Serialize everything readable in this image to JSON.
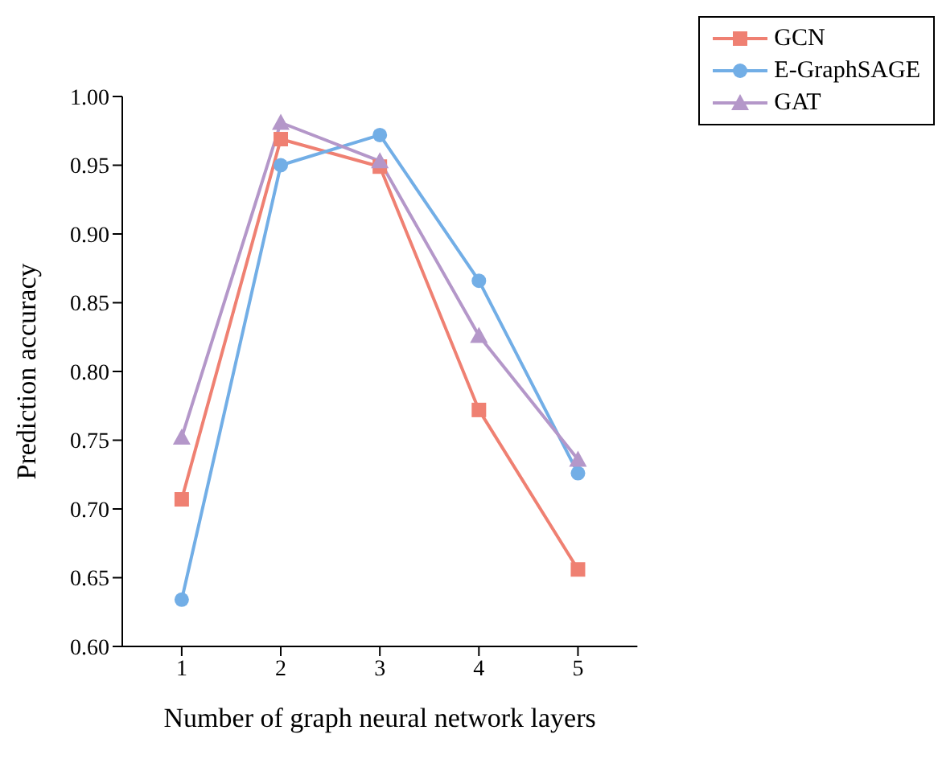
{
  "chart_data": {
    "type": "line",
    "xlabel": "Number of graph neural network layers",
    "ylabel": "Prediction accuracy",
    "x": [
      1,
      2,
      3,
      4,
      5
    ],
    "xlim": [
      0.4,
      5.6
    ],
    "xticks": [
      1,
      2,
      3,
      4,
      5
    ],
    "ylim": [
      0.6,
      1.0
    ],
    "yticks": [
      {
        "value": 0.6,
        "label": "0.60"
      },
      0.65,
      {
        "value": 0.7,
        "label": "0.70"
      },
      0.75,
      {
        "value": 0.8,
        "label": "0.80"
      },
      0.85,
      {
        "value": 0.9,
        "label": "0.90"
      },
      0.95,
      {
        "value": 1.0,
        "label": "1.00"
      }
    ],
    "legend": "top right",
    "grid": false,
    "series": [
      {
        "name": "GCN",
        "color": "#ef8072",
        "marker": "square",
        "values": [
          0.707,
          0.969,
          0.949,
          0.772,
          0.656
        ]
      },
      {
        "name": "E-GraphSAGE",
        "color": "#72aee6",
        "marker": "circle",
        "values": [
          0.634,
          0.95,
          0.972,
          0.866,
          0.726
        ]
      },
      {
        "name": "GAT",
        "color": "#b497c9",
        "marker": "triangle",
        "values": [
          0.752,
          0.981,
          0.953,
          0.826,
          0.736
        ]
      }
    ]
  }
}
